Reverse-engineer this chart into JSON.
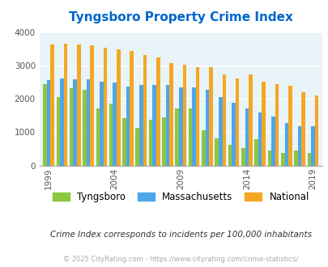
{
  "title": "Tyngsboro Property Crime Index",
  "years": [
    1999,
    2000,
    2001,
    2002,
    2003,
    2004,
    2005,
    2006,
    2007,
    2008,
    2009,
    2010,
    2011,
    2012,
    2013,
    2014,
    2015,
    2016,
    2017,
    2018,
    2019
  ],
  "tyngsboro": [
    2450,
    2050,
    2320,
    2260,
    1720,
    1850,
    1420,
    1120,
    1370,
    1440,
    1700,
    1700,
    1060,
    820,
    630,
    530,
    780,
    440,
    370,
    440,
    370
  ],
  "massachusetts": [
    2550,
    2600,
    2580,
    2590,
    2500,
    2490,
    2370,
    2410,
    2410,
    2410,
    2330,
    2350,
    2280,
    2060,
    1870,
    1700,
    1600,
    1460,
    1270,
    1190,
    1190
  ],
  "national": [
    3620,
    3650,
    3620,
    3600,
    3520,
    3470,
    3430,
    3310,
    3250,
    3070,
    3020,
    2950,
    2950,
    2730,
    2620,
    2720,
    2500,
    2450,
    2400,
    2190,
    2110
  ],
  "tyngsboro_color": "#8dc63f",
  "massachusetts_color": "#4da6e8",
  "national_color": "#f5a623",
  "bg_color": "#e8f4f8",
  "title_color": "#0066cc",
  "ylim": [
    0,
    4000
  ],
  "subtitle": "Crime Index corresponds to incidents per 100,000 inhabitants",
  "footer": "© 2025 CityRating.com - https://www.cityrating.com/crime-statistics/",
  "legend_labels": [
    "Tyngsboro",
    "Massachusetts",
    "National"
  ],
  "tick_years": [
    1999,
    2004,
    2009,
    2014,
    2019
  ]
}
